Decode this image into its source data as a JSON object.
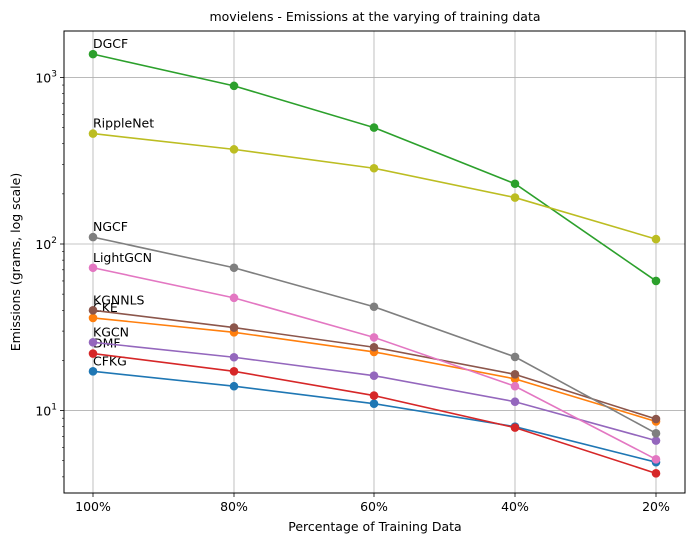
{
  "chart_data": {
    "type": "line",
    "title": "movielens - Emissions at the varying of training data",
    "xlabel": "Percentage of Training Data",
    "ylabel": "Emissions (grams, log scale)",
    "yscale": "log",
    "ylim": [
      3.2,
      1900
    ],
    "grid": true,
    "categories": [
      "100%",
      "80%",
      "60%",
      "40%",
      "20%"
    ],
    "y_ticks": [
      {
        "value": 10,
        "label": "10^1"
      },
      {
        "value": 100,
        "label": "10^2"
      },
      {
        "value": 1000,
        "label": "10^3"
      }
    ],
    "series": [
      {
        "name": "CFKG",
        "color": "#1f77b4",
        "values": [
          17.2,
          14.0,
          11.0,
          8.0,
          4.9
        ]
      },
      {
        "name": "CKE",
        "color": "#ff7f0e",
        "values": [
          36.0,
          29.5,
          22.5,
          15.5,
          8.6
        ]
      },
      {
        "name": "DGCF",
        "color": "#2ca02c",
        "values": [
          1380,
          890,
          500,
          230,
          60
        ]
      },
      {
        "name": "DMF",
        "color": "#d62728",
        "values": [
          22.0,
          17.2,
          12.3,
          7.9,
          4.2
        ]
      },
      {
        "name": "KGCN",
        "color": "#9467bd",
        "values": [
          25.7,
          20.9,
          16.2,
          11.3,
          6.6
        ]
      },
      {
        "name": "KGNNLS",
        "color": "#8c564b",
        "values": [
          40.0,
          31.5,
          24.0,
          16.5,
          8.9
        ]
      },
      {
        "name": "LightGCN",
        "color": "#e377c2",
        "values": [
          72.0,
          47.5,
          27.5,
          14.0,
          5.1
        ]
      },
      {
        "name": "NGCF",
        "color": "#7f7f7f",
        "values": [
          110.0,
          72.0,
          42.0,
          21.0,
          7.3
        ]
      },
      {
        "name": "RippleNet",
        "color": "#bcbd22",
        "values": [
          460,
          370,
          285,
          190,
          107
        ]
      }
    ]
  }
}
